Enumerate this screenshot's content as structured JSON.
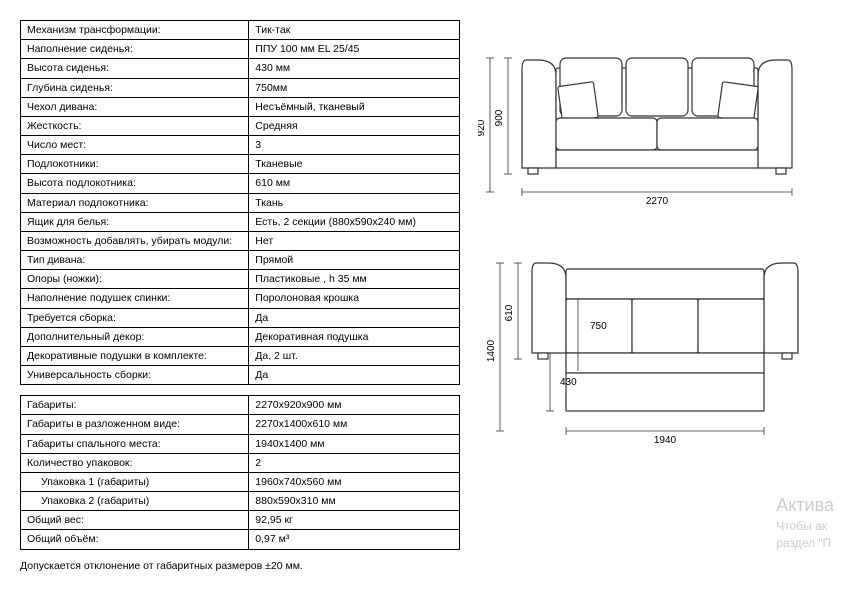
{
  "specs_table": {
    "rows": [
      {
        "label": "Механизм трансформации:",
        "value": "Тик-так"
      },
      {
        "label": "Наполнение сиденья:",
        "value": "ППУ 100 мм EL 25/45"
      },
      {
        "label": "Высота сиденья:",
        "value": "430 мм"
      },
      {
        "label": "Глубина сиденья:",
        "value": "750мм"
      },
      {
        "label": "Чехол дивана:",
        "value": "Несъёмный, тканевый"
      },
      {
        "label": "Жесткость:",
        "value": "Средняя"
      },
      {
        "label": "Число мест:",
        "value": "3"
      },
      {
        "label": "Подлокотники:",
        "value": "Тканевые"
      },
      {
        "label": "Высота подлокотника:",
        "value": "610 мм"
      },
      {
        "label": "Материал подлокотника:",
        "value": "Ткань"
      },
      {
        "label": "Ящик для белья:",
        "value": "Есть, 2 секции (880х590х240 мм)"
      },
      {
        "label": "Возможность добавлять, убирать модули:",
        "value": "Нет"
      },
      {
        "label": "Тип дивана:",
        "value": "Прямой"
      },
      {
        "label": "Опоры (ножки):",
        "value": "Пластиковые , h 35 мм"
      },
      {
        "label": "Наполнение подушек спинки:",
        "value": "Поролоновая крошка"
      },
      {
        "label": "Требуется сборка:",
        "value": "Да"
      },
      {
        "label": "Дополнительный декор:",
        "value": "Декоративная подушка"
      },
      {
        "label": "Декоративные подушки в комплекте:",
        "value": "Да, 2 шт."
      },
      {
        "label": "Универсальность сборки:",
        "value": "Да"
      }
    ]
  },
  "dimensions_table": {
    "rows": [
      {
        "label": "Габариты:",
        "value": "2270х920х900 мм",
        "indent": false
      },
      {
        "label": "Габариты в разложенном виде:",
        "value": "2270х1400х610 мм",
        "indent": false
      },
      {
        "label": "Габариты спального места:",
        "value": "1940х1400 мм",
        "indent": false
      },
      {
        "label": "Количество упаковок:",
        "value": "2",
        "indent": false
      },
      {
        "label": "Упаковка 1 (габариты)",
        "value": "1960х740х560 мм",
        "indent": true
      },
      {
        "label": "Упаковка 2 (габариты)",
        "value": "880х590х310 мм",
        "indent": true
      },
      {
        "label": "Общий вес:",
        "value": "92,95 кг",
        "indent": false
      },
      {
        "label": "Общий объём:",
        "value": "0,97 м³",
        "indent": false
      }
    ]
  },
  "footnote": "Допускается отклонение от габаритных размеров ±20 мм.",
  "diagram_sofa": {
    "dim_height": "900",
    "dim_depth": "920",
    "dim_width": "2270",
    "line_color": "#333",
    "fill_color": "#fff"
  },
  "diagram_bed": {
    "dim_arm_height": "610",
    "dim_seat_depth": "750",
    "dim_seat_height": "430",
    "dim_full_depth": "1400",
    "dim_width": "1940",
    "line_color": "#333",
    "fill_color": "#fff"
  },
  "watermark": {
    "line1": "Актива",
    "line2": "Чтобы ак",
    "line3": "раздел \"П"
  }
}
